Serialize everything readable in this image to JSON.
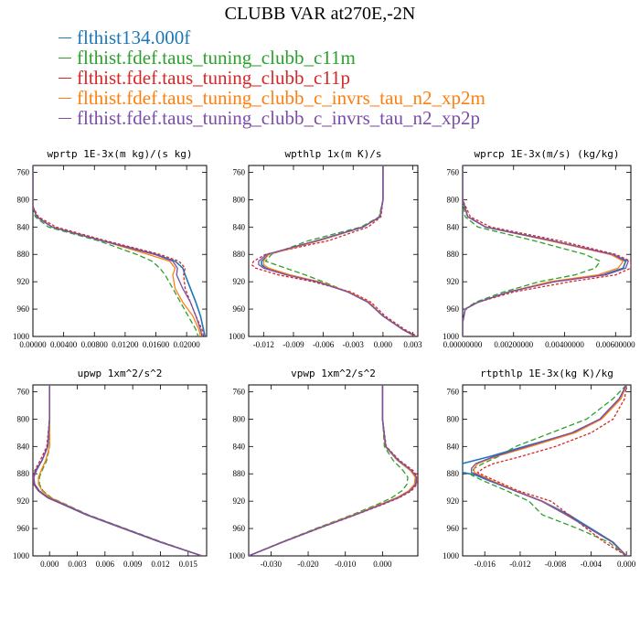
{
  "figure_title": "CLUBB VAR at270E,-2N",
  "colors": {
    "s0": "#1f77b4",
    "s1": "#2ca02c",
    "s2": "#d62728",
    "s3": "#ff7f0e",
    "s4": "#7b4ea8"
  },
  "legend": [
    {
      "key": "s0",
      "label": "flthist134.000f",
      "color": "#1f77b4"
    },
    {
      "key": "s1",
      "label": "flthist.fdef.taus_tuning_clubb_c11m",
      "color": "#2ca02c"
    },
    {
      "key": "s2",
      "label": "flthist.fdef.taus_tuning_clubb_c11p",
      "color": "#d62728"
    },
    {
      "key": "s3",
      "label": "flthist.fdef.taus_tuning_clubb_c_invrs_tau_n2_xp2m",
      "color": "#ff7f0e"
    },
    {
      "key": "s4",
      "label": "flthist.fdef.taus_tuning_clubb_c_invrs_tau_n2_xp2p",
      "color": "#7b4ea8"
    }
  ],
  "chart_data": [
    {
      "type": "line",
      "title": "wprtp  1E-3x(m kg)/(s kg)",
      "xlim": [
        0,
        0.0226
      ],
      "ylim": [
        1000,
        750
      ],
      "xticks": [
        0,
        0.004,
        0.008,
        0.012,
        0.016,
        0.02
      ],
      "xticklabels": [
        "0.00000",
        "0.00400",
        "0.00800",
        "0.01200",
        "0.01600",
        "0.02000"
      ],
      "yticks": [
        760,
        800,
        840,
        880,
        920,
        960,
        1000
      ],
      "y": [
        750,
        780,
        810,
        825,
        840,
        860,
        880,
        890,
        900,
        910,
        930,
        950,
        970,
        990,
        1000
      ],
      "series": [
        {
          "key": "s0",
          "values": [
            0,
            0,
            0,
            0.0005,
            0.0025,
            0.009,
            0.016,
            0.0185,
            0.0195,
            0.0198,
            0.0205,
            0.0212,
            0.0218,
            0.0222,
            0.0224
          ]
        },
        {
          "key": "s1",
          "values": [
            0,
            0,
            0,
            0.0003,
            0.002,
            0.0085,
            0.0135,
            0.0155,
            0.0165,
            0.0172,
            0.0182,
            0.0192,
            0.0202,
            0.0212,
            0.0215
          ]
        },
        {
          "key": "s2",
          "values": [
            0,
            0,
            0,
            0.0007,
            0.003,
            0.0095,
            0.0165,
            0.019,
            0.0198,
            0.0196,
            0.0198,
            0.0205,
            0.0212,
            0.022,
            0.0222
          ]
        },
        {
          "key": "s3",
          "values": [
            0,
            0,
            0,
            0.0005,
            0.0025,
            0.009,
            0.015,
            0.0178,
            0.0185,
            0.0182,
            0.0185,
            0.0195,
            0.0208,
            0.0216,
            0.0218
          ]
        },
        {
          "key": "s4",
          "values": [
            0,
            0,
            0,
            0.0005,
            0.0025,
            0.009,
            0.0158,
            0.0182,
            0.0188,
            0.0187,
            0.0195,
            0.0205,
            0.0212,
            0.0218,
            0.022
          ]
        }
      ]
    },
    {
      "type": "line",
      "title": "wpthlp  1x(m K)/s",
      "xlim": [
        -0.0135,
        0.0035
      ],
      "ylim": [
        1000,
        750
      ],
      "xticks": [
        -0.012,
        -0.009,
        -0.006,
        -0.003,
        0,
        0.003
      ],
      "xticklabels": [
        "-0.012",
        "-0.009",
        "-0.006",
        "-0.003",
        "0.000",
        "0.003"
      ],
      "yticks": [
        760,
        800,
        840,
        880,
        920,
        960,
        1000
      ],
      "y": [
        750,
        800,
        825,
        840,
        860,
        880,
        890,
        895,
        900,
        910,
        920,
        935,
        950,
        970,
        990,
        1000
      ],
      "series": [
        {
          "key": "s0",
          "values": [
            0,
            0,
            -0.0003,
            -0.002,
            -0.0065,
            -0.0115,
            -0.0122,
            -0.0122,
            -0.0118,
            -0.0095,
            -0.0065,
            -0.0035,
            -0.0015,
            0,
            0.002,
            0.0033
          ]
        },
        {
          "key": "s1",
          "values": [
            0,
            0,
            -0.0004,
            -0.0022,
            -0.0075,
            -0.0112,
            -0.0118,
            -0.0108,
            -0.0098,
            -0.0078,
            -0.006,
            -0.0035,
            -0.0015,
            0,
            0.002,
            0.0035
          ]
        },
        {
          "key": "s2",
          "values": [
            0,
            0,
            -0.0002,
            -0.0015,
            -0.0055,
            -0.0118,
            -0.013,
            -0.0132,
            -0.0128,
            -0.0105,
            -0.007,
            -0.0032,
            -0.0012,
            0.0002,
            0.0022,
            0.0035
          ]
        },
        {
          "key": "s3",
          "values": [
            0,
            0,
            -0.0003,
            -0.002,
            -0.0065,
            -0.0115,
            -0.012,
            -0.012,
            -0.0115,
            -0.0093,
            -0.0064,
            -0.0034,
            -0.0014,
            0,
            0.002,
            0.0032
          ]
        },
        {
          "key": "s4",
          "values": [
            0,
            0,
            -0.0003,
            -0.002,
            -0.0067,
            -0.0117,
            -0.0125,
            -0.0125,
            -0.012,
            -0.0097,
            -0.0066,
            -0.0035,
            -0.0015,
            0,
            0.002,
            0.0033
          ]
        }
      ]
    },
    {
      "type": "line",
      "title": "wprcp  1E-3x(m/s) (kg/kg)",
      "xlim": [
        0,
        0.0066
      ],
      "ylim": [
        1000,
        750
      ],
      "xticks": [
        0,
        0.002,
        0.004,
        0.006
      ],
      "xticklabels": [
        "0.00000000",
        "0.00200000",
        "0.00400000",
        "0.00600000"
      ],
      "yticks": [
        760,
        800,
        840,
        880,
        920,
        960,
        1000
      ],
      "y": [
        750,
        800,
        825,
        840,
        860,
        880,
        890,
        900,
        910,
        920,
        935,
        950,
        960,
        980,
        1000
      ],
      "series": [
        {
          "key": "s0",
          "values": [
            0,
            0,
            0.0002,
            0.0009,
            0.0035,
            0.0058,
            0.0064,
            0.0063,
            0.0055,
            0.0035,
            0.0018,
            0.0006,
            0.0001,
            0,
            0
          ]
        },
        {
          "key": "s1",
          "values": [
            0,
            0,
            0.0001,
            0.0006,
            0.0028,
            0.0048,
            0.0054,
            0.0052,
            0.0044,
            0.003,
            0.0016,
            0.0005,
            0.0001,
            0,
            0
          ]
        },
        {
          "key": "s2",
          "values": [
            0,
            0,
            0.0003,
            0.0011,
            0.0038,
            0.006,
            0.0066,
            0.0066,
            0.006,
            0.0042,
            0.002,
            0.0006,
            0.0001,
            0,
            0
          ]
        },
        {
          "key": "s3",
          "values": [
            0,
            0,
            0.0002,
            0.0009,
            0.0034,
            0.0058,
            0.0063,
            0.0061,
            0.0053,
            0.0034,
            0.0018,
            0.0006,
            0.0001,
            0,
            0
          ]
        },
        {
          "key": "s4",
          "values": [
            0,
            0,
            0.0002,
            0.0009,
            0.0035,
            0.0059,
            0.0065,
            0.0064,
            0.0056,
            0.0036,
            0.0018,
            0.0006,
            0.0001,
            0,
            0
          ]
        }
      ]
    },
    {
      "type": "line",
      "title": "upwp  1xm^2/s^2",
      "xlim": [
        -0.0018,
        0.017
      ],
      "ylim": [
        1000,
        750
      ],
      "xticks": [
        0,
        0.003,
        0.006,
        0.009,
        0.012,
        0.015
      ],
      "xticklabels": [
        "0.000",
        "0.003",
        "0.006",
        "0.009",
        "0.012",
        "0.015"
      ],
      "yticks": [
        760,
        800,
        840,
        880,
        920,
        960,
        1000
      ],
      "y": [
        750,
        800,
        840,
        860,
        875,
        885,
        895,
        905,
        915,
        925,
        940,
        960,
        980,
        1000
      ],
      "series": [
        {
          "key": "s0",
          "values": [
            0,
            0,
            -0.0002,
            -0.0008,
            -0.0015,
            -0.0018,
            -0.0017,
            -0.0012,
            -0.0002,
            0.0015,
            0.004,
            0.008,
            0.012,
            0.0165
          ]
        },
        {
          "key": "s1",
          "values": [
            0,
            0,
            0,
            -0.0003,
            -0.0008,
            -0.0011,
            -0.0011,
            -0.0007,
            0.0002,
            0.0018,
            0.0042,
            0.0082,
            0.0122,
            0.0165
          ]
        },
        {
          "key": "s2",
          "values": [
            0,
            0,
            -0.0003,
            -0.001,
            -0.0016,
            -0.0018,
            -0.0017,
            -0.0012,
            -0.0002,
            0.0015,
            0.004,
            0.008,
            0.012,
            0.0165
          ]
        },
        {
          "key": "s3",
          "values": [
            0,
            0,
            0,
            -0.0004,
            -0.0009,
            -0.0012,
            -0.0012,
            -0.0008,
            0.0001,
            0.0017,
            0.0041,
            0.0081,
            0.0121,
            0.0165
          ]
        },
        {
          "key": "s4",
          "values": [
            0,
            0,
            -0.0002,
            -0.0008,
            -0.0014,
            -0.0017,
            -0.0016,
            -0.0011,
            -0.0001,
            0.0016,
            0.0041,
            0.0081,
            0.0121,
            0.0165
          ]
        }
      ]
    },
    {
      "type": "line",
      "title": "vpwp  1xm^2/s^2",
      "xlim": [
        -0.036,
        0.0095
      ],
      "ylim": [
        1000,
        750
      ],
      "xticks": [
        -0.03,
        -0.02,
        -0.01,
        0
      ],
      "xticklabels": [
        "-0.030",
        "-0.020",
        "-0.010",
        "0.000"
      ],
      "yticks": [
        760,
        800,
        840,
        880,
        920,
        960,
        1000
      ],
      "y": [
        750,
        800,
        840,
        860,
        875,
        885,
        895,
        905,
        915,
        925,
        940,
        960,
        980,
        1000
      ],
      "series": [
        {
          "key": "s0",
          "values": [
            0,
            0,
            0.0008,
            0.004,
            0.0075,
            0.009,
            0.0088,
            0.0072,
            0.004,
            -0.0005,
            -0.0075,
            -0.0175,
            -0.027,
            -0.036
          ]
        },
        {
          "key": "s1",
          "values": [
            0,
            0,
            0.0005,
            0.0028,
            0.0055,
            0.0068,
            0.0066,
            0.0052,
            0.0025,
            -0.0015,
            -0.0082,
            -0.018,
            -0.0272,
            -0.036
          ]
        },
        {
          "key": "s2",
          "values": [
            0,
            0,
            0.001,
            0.0045,
            0.0082,
            0.0095,
            0.0093,
            0.0078,
            0.0045,
            0,
            -0.0072,
            -0.0172,
            -0.0268,
            -0.036
          ]
        },
        {
          "key": "s3",
          "values": [
            0,
            0,
            0.0008,
            0.004,
            0.0075,
            0.0088,
            0.0086,
            0.007,
            0.0038,
            -0.0007,
            -0.0077,
            -0.0176,
            -0.027,
            -0.036
          ]
        },
        {
          "key": "s4",
          "values": [
            0,
            0,
            0.0009,
            0.0042,
            0.0078,
            0.0092,
            0.009,
            0.0074,
            0.0042,
            -0.0003,
            -0.0074,
            -0.0174,
            -0.0269,
            -0.036
          ]
        }
      ]
    },
    {
      "type": "line",
      "title": "rtpthlp  1E-3x(kg K)/kg",
      "xlim": [
        -0.0185,
        0.0005
      ],
      "ylim": [
        1000,
        750
      ],
      "xticks": [
        -0.016,
        -0.012,
        -0.008,
        -0.004,
        0
      ],
      "xticklabels": [
        "-0.016",
        "-0.012",
        "-0.008",
        "-0.004",
        "0.000"
      ],
      "yticks": [
        760,
        800,
        840,
        880,
        920,
        960,
        1000
      ],
      "y": [
        750,
        770,
        800,
        820,
        840,
        855,
        865,
        872,
        878,
        882,
        890,
        905,
        920,
        940,
        960,
        980,
        1000
      ],
      "series": [
        {
          "key": "s0",
          "values": [
            0,
            -0.0008,
            -0.003,
            -0.006,
            -0.0115,
            -0.0155,
            -0.0185,
            -0.0185,
            -0.0185,
            -0.017,
            -0.0155,
            -0.0125,
            -0.0095,
            -0.0065,
            -0.004,
            -0.0015,
            0
          ]
        },
        {
          "key": "s1",
          "values": [
            0,
            -0.0015,
            -0.0045,
            -0.0085,
            -0.0125,
            -0.0145,
            -0.0162,
            -0.0172,
            -0.0175,
            -0.0175,
            -0.0162,
            -0.0135,
            -0.011,
            -0.0095,
            -0.0055,
            -0.002,
            0
          ]
        },
        {
          "key": "s2",
          "values": [
            0,
            -0.0002,
            -0.0015,
            -0.004,
            -0.008,
            -0.012,
            -0.015,
            -0.0162,
            -0.0168,
            -0.0162,
            -0.0148,
            -0.0122,
            -0.0085,
            -0.0065,
            -0.0045,
            -0.0025,
            0
          ]
        },
        {
          "key": "s3",
          "values": [
            0,
            -0.0006,
            -0.0028,
            -0.0058,
            -0.0108,
            -0.0148,
            -0.0168,
            -0.0172,
            -0.0172,
            -0.0165,
            -0.0152,
            -0.0125,
            -0.0095,
            -0.0068,
            -0.0042,
            -0.0016,
            0
          ]
        },
        {
          "key": "s4",
          "values": [
            0,
            -0.0008,
            -0.003,
            -0.0062,
            -0.0112,
            -0.015,
            -0.017,
            -0.0175,
            -0.0175,
            -0.0167,
            -0.0154,
            -0.0126,
            -0.0096,
            -0.0068,
            -0.0042,
            -0.0016,
            0
          ]
        }
      ]
    }
  ]
}
